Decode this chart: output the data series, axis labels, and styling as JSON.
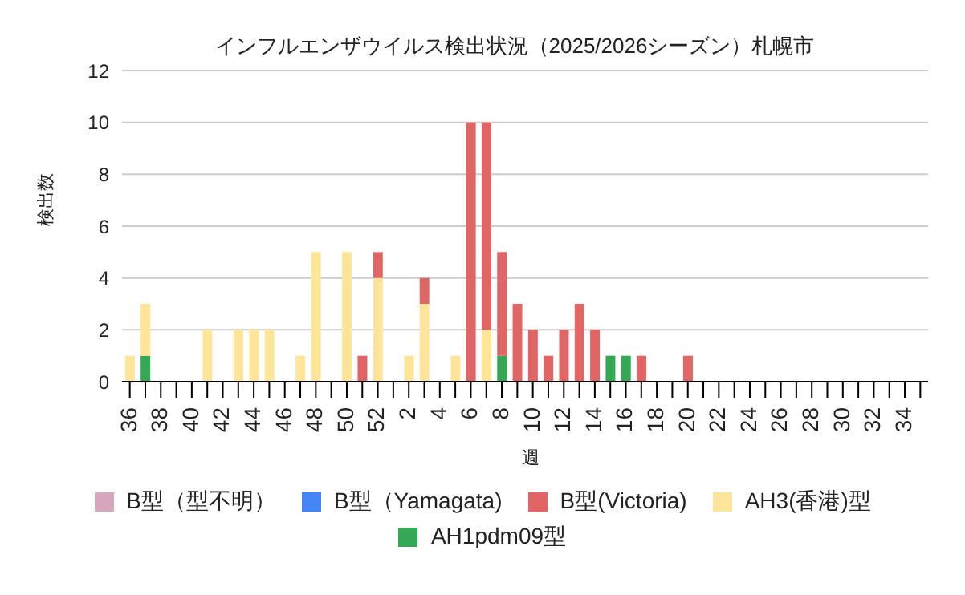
{
  "chart_data": {
    "type": "bar",
    "title": "インフルエンザウイルス検出状況（2025/2026シーズン）札幌市",
    "xlabel": "週",
    "ylabel": "検出数",
    "stacked": true,
    "grid": "y",
    "legend": "bottom",
    "ylim": [
      0,
      12
    ],
    "yticks": [
      0,
      2,
      4,
      6,
      8,
      10,
      12
    ],
    "categories": [
      "36",
      null,
      "38",
      null,
      "40",
      null,
      "42",
      null,
      "44",
      null,
      "46",
      null,
      "48",
      null,
      "50",
      null,
      "52",
      null,
      "2",
      null,
      "4",
      null,
      "6",
      null,
      "8",
      null,
      "10",
      null,
      "12",
      null,
      "14",
      null,
      "16",
      null,
      "18",
      null,
      "20",
      null,
      "22",
      null,
      "24",
      null,
      "26",
      null,
      "28",
      null,
      "30",
      null,
      "32",
      null,
      "34",
      null
    ],
    "series": [
      {
        "name": "AH1pdm09型",
        "color": "#34a853",
        "values": [
          0,
          1,
          0,
          0,
          0,
          0,
          0,
          0,
          0,
          0,
          0,
          0,
          0,
          0,
          0,
          0,
          0,
          0,
          0,
          0,
          0,
          0,
          0,
          0,
          1,
          0,
          0,
          0,
          0,
          0,
          0,
          1,
          1,
          0,
          0,
          0,
          0,
          0,
          0,
          0,
          0,
          0,
          0,
          0,
          0,
          0,
          0,
          0,
          0,
          0,
          0,
          0
        ]
      },
      {
        "name": "AH3(香港)型",
        "color": "#ffe599",
        "values": [
          1,
          2,
          0,
          0,
          0,
          2,
          0,
          2,
          2,
          2,
          0,
          1,
          5,
          0,
          5,
          0,
          4,
          0,
          1,
          3,
          0,
          1,
          0,
          2,
          0,
          0,
          0,
          0,
          0,
          0,
          0,
          0,
          0,
          0,
          0,
          0,
          0,
          0,
          0,
          0,
          0,
          0,
          0,
          0,
          0,
          0,
          0,
          0,
          0,
          0,
          0,
          0
        ]
      },
      {
        "name": "B型(Victoria)",
        "color": "#e06666",
        "values": [
          0,
          0,
          0,
          0,
          0,
          0,
          0,
          0,
          0,
          0,
          0,
          0,
          0,
          0,
          0,
          1,
          1,
          0,
          0,
          1,
          0,
          0,
          10,
          8,
          4,
          3,
          2,
          1,
          2,
          3,
          2,
          0,
          0,
          1,
          0,
          0,
          1,
          0,
          0,
          0,
          0,
          0,
          0,
          0,
          0,
          0,
          0,
          0,
          0,
          0,
          0,
          0
        ]
      },
      {
        "name": "B型（Yamagata)",
        "color": "#4285f4",
        "values": [
          0,
          0,
          0,
          0,
          0,
          0,
          0,
          0,
          0,
          0,
          0,
          0,
          0,
          0,
          0,
          0,
          0,
          0,
          0,
          0,
          0,
          0,
          0,
          0,
          0,
          0,
          0,
          0,
          0,
          0,
          0,
          0,
          0,
          0,
          0,
          0,
          0,
          0,
          0,
          0,
          0,
          0,
          0,
          0,
          0,
          0,
          0,
          0,
          0,
          0,
          0,
          0
        ]
      },
      {
        "name": "B型（型不明）",
        "color": "#d5a6bd",
        "values": [
          0,
          0,
          0,
          0,
          0,
          0,
          0,
          0,
          0,
          0,
          0,
          0,
          0,
          0,
          0,
          0,
          0,
          0,
          0,
          0,
          0,
          0,
          0,
          0,
          0,
          0,
          0,
          0,
          0,
          0,
          0,
          0,
          0,
          0,
          0,
          0,
          0,
          0,
          0,
          0,
          0,
          0,
          0,
          0,
          0,
          0,
          0,
          0,
          0,
          0,
          0,
          0
        ]
      }
    ]
  }
}
